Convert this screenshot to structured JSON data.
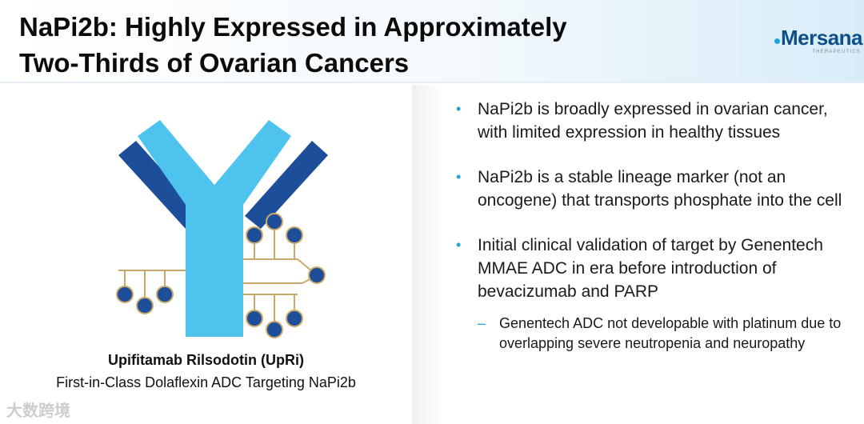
{
  "header": {
    "title_line1": "NaPi2b: Highly Expressed in Approximately",
    "title_line2": "Two-Thirds of Ovarian Cancers",
    "logo_text": "Mersana",
    "logo_subtext": "THERAPEUTICS"
  },
  "figure": {
    "caption_title": "Upifitamab Rilsodotin (UpRi)",
    "caption_subtitle": "First-in-Class Dolaflexin ADC Targeting NaPi2b",
    "icon": "antibody-drug-conjugate-illustration"
  },
  "bullets": [
    {
      "text": "NaPi2b is broadly expressed in ovarian cancer, with limited expression in healthy tissues"
    },
    {
      "text": "NaPi2b is a stable lineage marker (not an oncogene) that transports phosphate into the cell"
    },
    {
      "text": "Initial clinical validation of target by Genentech MMAE ADC in era before introduction of bevacizumab and PARP"
    }
  ],
  "sub_bullets": [
    {
      "text": "Genentech ADC not developable with platinum due to overlapping severe neutropenia and neuropathy"
    }
  ],
  "watermark": "大数跨境",
  "colors": {
    "bullet_accent": "#1fa3dc",
    "antibody_light": "#4ec3ee",
    "antibody_dark": "#1d4e9a",
    "linker": "#c9a86a"
  }
}
